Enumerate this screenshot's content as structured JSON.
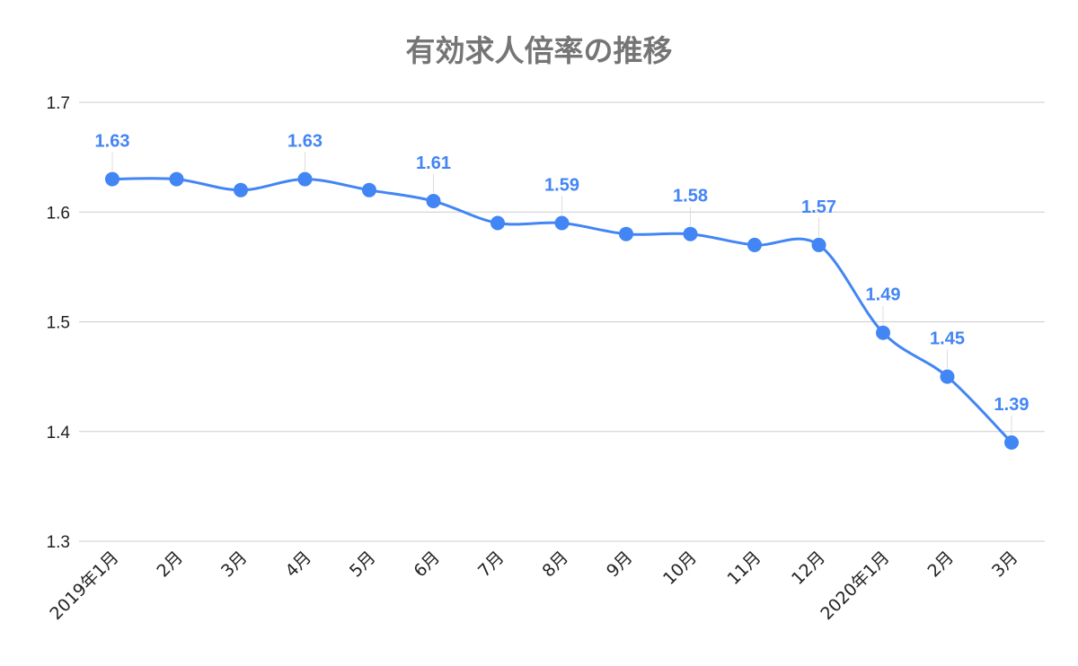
{
  "chart_data": {
    "type": "line",
    "title": "有効求人倍率の推移",
    "xlabel": "",
    "ylabel": "",
    "categories": [
      "2019年1月",
      "2月",
      "3月",
      "4月",
      "5月",
      "6月",
      "7月",
      "8月",
      "9月",
      "10月",
      "11月",
      "12月",
      "2020年1月",
      "2月",
      "3月"
    ],
    "series": [
      {
        "values": [
          1.63,
          1.63,
          1.62,
          1.63,
          1.62,
          1.61,
          1.59,
          1.59,
          1.58,
          1.58,
          1.57,
          1.57,
          1.49,
          1.45,
          1.39
        ]
      }
    ],
    "data_labels": [
      {
        "index": 0,
        "text": "1.63"
      },
      {
        "index": 3,
        "text": "1.63"
      },
      {
        "index": 5,
        "text": "1.61"
      },
      {
        "index": 7,
        "text": "1.59"
      },
      {
        "index": 9,
        "text": "1.58"
      },
      {
        "index": 11,
        "text": "1.57"
      },
      {
        "index": 12,
        "text": "1.49"
      },
      {
        "index": 13,
        "text": "1.45"
      },
      {
        "index": 14,
        "text": "1.39"
      }
    ],
    "ylim": [
      1.3,
      1.7
    ],
    "yticks": [
      "1.3",
      "1.4",
      "1.5",
      "1.6",
      "1.7"
    ],
    "grid": true,
    "legend": "none",
    "colors": {
      "line": "#4285f4",
      "label": "#4285f4",
      "grid": "#cccccc",
      "title": "#757575"
    }
  }
}
